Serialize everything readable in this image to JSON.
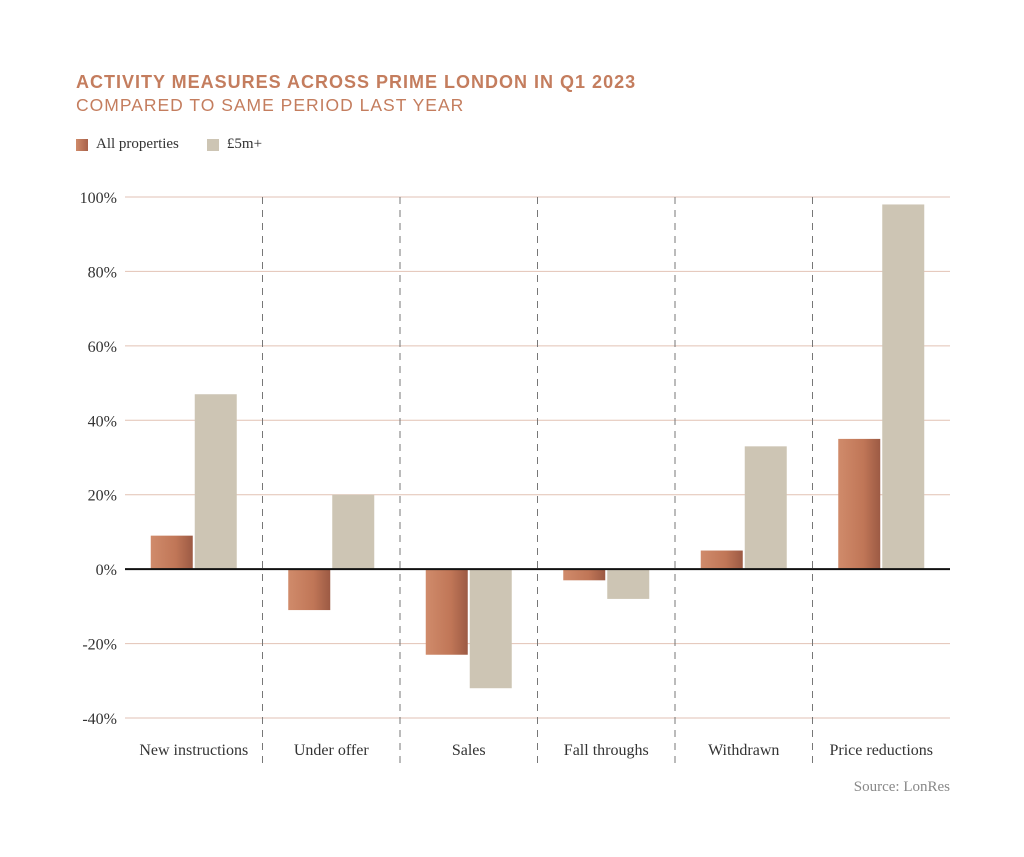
{
  "chart_data": {
    "type": "bar",
    "title": "ACTIVITY MEASURES ACROSS PRIME LONDON IN Q1 2023",
    "subtitle": "COMPARED TO SAME PERIOD LAST YEAR",
    "categories": [
      "New instructions",
      "Under offer",
      "Sales",
      "Fall throughs",
      "Withdrawn",
      "Price reductions"
    ],
    "series": [
      {
        "name": "All properties",
        "color": "#c47d5e",
        "values": [
          9,
          -11,
          -23,
          -3,
          5,
          35
        ]
      },
      {
        "name": "£5m+",
        "color": "#cdc5b4",
        "values": [
          47,
          20,
          -32,
          -8,
          33,
          98
        ]
      }
    ],
    "ylim": [
      -40,
      100
    ],
    "yticks": [
      100,
      80,
      60,
      40,
      20,
      0,
      -20,
      -40
    ],
    "ytick_labels": [
      "100%",
      "80%",
      "60%",
      "40%",
      "20%",
      "0%",
      "-20%",
      "-40%"
    ],
    "xlabel": "",
    "ylabel": "",
    "grid": true,
    "legend": "top-left",
    "source": "Source: LonRes"
  }
}
